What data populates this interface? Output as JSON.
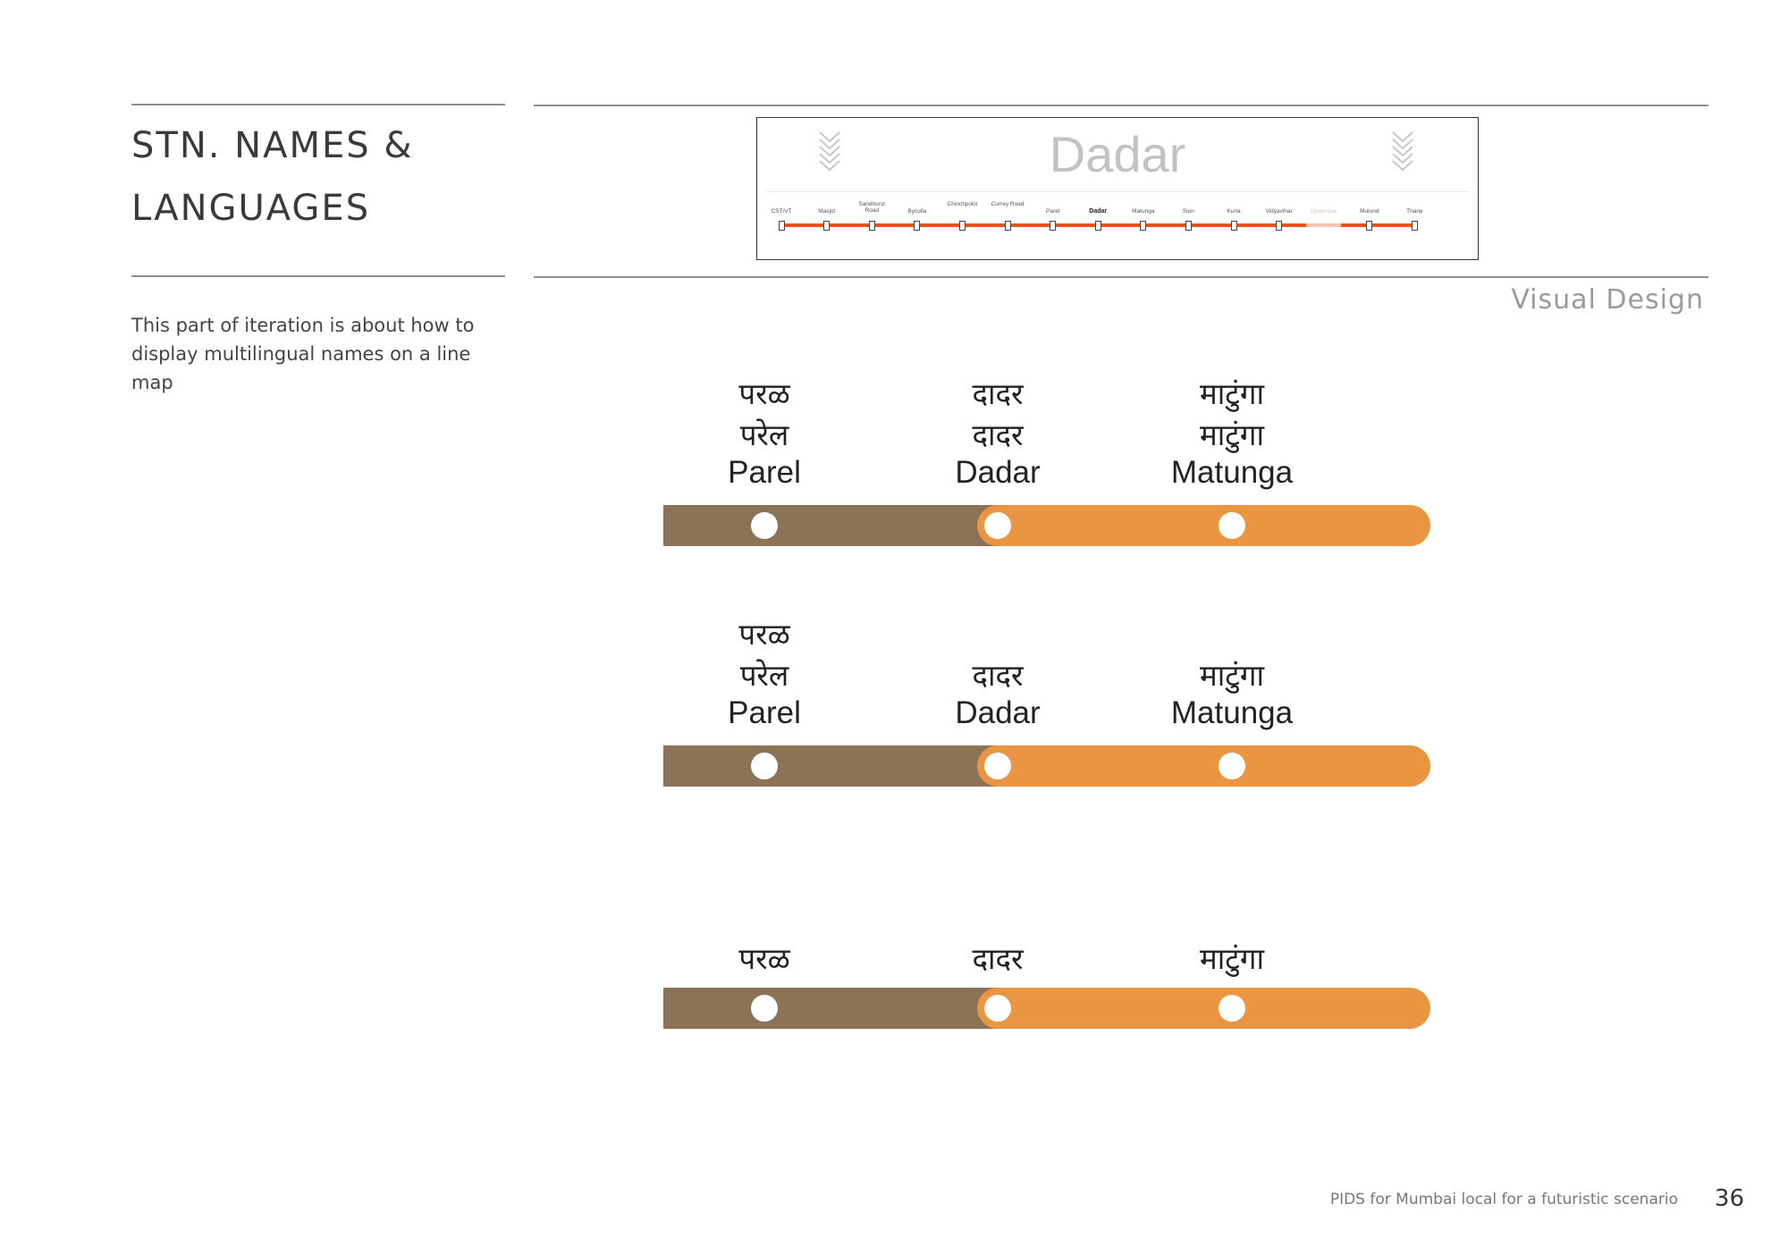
{
  "title": "STN. NAMES &\nLANGUAGES",
  "description": "This part of iteration is about how to display  multilingual names on a line map",
  "section_label": "Visual Design",
  "preview": {
    "current_station": "Dadar",
    "stations": [
      {
        "name": "CST/VT",
        "state": "normal"
      },
      {
        "name": "Masjid",
        "state": "normal"
      },
      {
        "name": "Sandhurst Road",
        "state": "normal"
      },
      {
        "name": "Byculla",
        "state": "normal"
      },
      {
        "name": "Chinchpokli",
        "state": "normal"
      },
      {
        "name": "Currey Road",
        "state": "normal"
      },
      {
        "name": "Parel",
        "state": "normal"
      },
      {
        "name": "Dadar",
        "state": "current"
      },
      {
        "name": "Matunga",
        "state": "normal"
      },
      {
        "name": "Sion",
        "state": "normal"
      },
      {
        "name": "Kurla",
        "state": "normal"
      },
      {
        "name": "Vidyavihar",
        "state": "normal"
      },
      {
        "name": "Ghatkopar",
        "state": "faded"
      },
      {
        "name": "Mulund",
        "state": "normal"
      },
      {
        "name": "Thane",
        "state": "normal"
      }
    ],
    "line_color": "#e8541c",
    "faded_color": "#f1c7ad"
  },
  "variants": [
    {
      "stations": [
        {
          "lines": [
            {
              "text": "परळ",
              "script": "deva"
            },
            {
              "text": "परेल",
              "script": "deva"
            },
            {
              "text": "Parel",
              "script": "latin"
            }
          ]
        },
        {
          "lines": [
            {
              "text": "दादर",
              "script": "deva"
            },
            {
              "text": "दादर",
              "script": "deva"
            },
            {
              "text": "Dadar",
              "script": "latin"
            }
          ]
        },
        {
          "lines": [
            {
              "text": "माटुंगा",
              "script": "deva"
            },
            {
              "text": "माटुंगा",
              "script": "deva"
            },
            {
              "text": "Matunga",
              "script": "latin"
            }
          ]
        }
      ]
    },
    {
      "stations": [
        {
          "lines": [
            {
              "text": "परळ",
              "script": "deva"
            },
            {
              "text": "परेल",
              "script": "deva"
            },
            {
              "text": "Parel",
              "script": "latin"
            }
          ]
        },
        {
          "lines": [
            {
              "text": "दादर",
              "script": "deva"
            },
            {
              "text": "Dadar",
              "script": "latin"
            }
          ]
        },
        {
          "lines": [
            {
              "text": "माटुंगा",
              "script": "deva"
            },
            {
              "text": "Matunga",
              "script": "latin"
            }
          ]
        }
      ]
    },
    {
      "stations": [
        {
          "lines": [
            {
              "text": "परळ",
              "script": "deva"
            }
          ]
        },
        {
          "lines": [
            {
              "text": "दादर",
              "script": "deva"
            }
          ]
        },
        {
          "lines": [
            {
              "text": "माटुंगा",
              "script": "deva"
            }
          ]
        }
      ]
    }
  ],
  "colors": {
    "traveled": "#8d7356",
    "upcoming": "#e99541",
    "stop": "#ffffff"
  },
  "footer": "PIDS for Mumbai local for a futuristic scenario",
  "page_number": "36"
}
